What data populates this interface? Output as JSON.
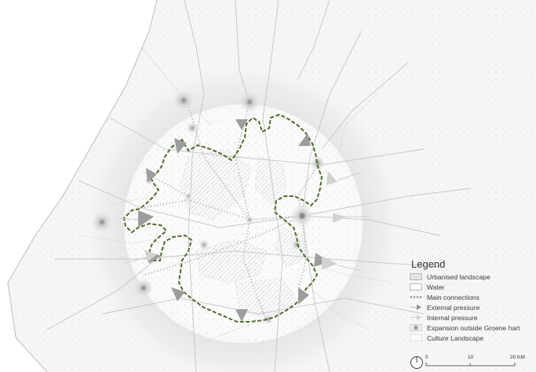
{
  "legend": {
    "title": "Legend",
    "items": [
      {
        "id": "urbanised",
        "label": "Urbanised landscape",
        "icon": "urbanised-swatch-icon"
      },
      {
        "id": "water",
        "label": "Water",
        "icon": "water-swatch-icon"
      },
      {
        "id": "connections",
        "label": "Main connections",
        "icon": "dotted-line-icon"
      },
      {
        "id": "external",
        "label": "External pressure",
        "icon": "arrow-dark-icon"
      },
      {
        "id": "internal",
        "label": "Internal pressure",
        "icon": "arrow-light-icon"
      },
      {
        "id": "expansion",
        "label": "Expansion outside Groene hart",
        "icon": "radial-circle-icon"
      },
      {
        "id": "culture",
        "label": "Culture Landscape",
        "icon": "dashed-box-icon"
      }
    ]
  },
  "scale": {
    "labels": [
      "0",
      "10",
      "20 KM"
    ],
    "north_icon": "north-arrow-icon"
  },
  "colors": {
    "boundary": "#4f6b2d",
    "ring_outer": "#ececec",
    "ring_inner": "#e2e2e2",
    "arrow": "#9a9a9a",
    "road": "#bdbdbd"
  }
}
